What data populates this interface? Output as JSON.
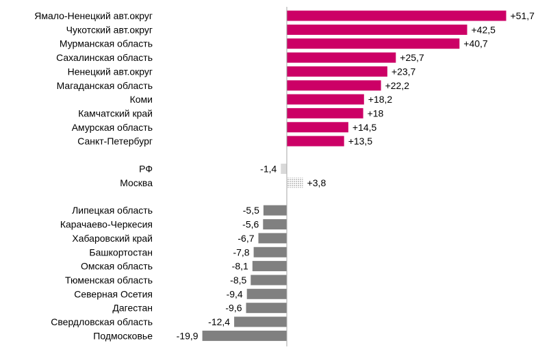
{
  "chart_data": {
    "type": "bar",
    "orientation": "horizontal",
    "colors": {
      "top": "#cc0066",
      "reference": "#d9d9d9",
      "bottom": "#808080",
      "axis": "#a6a6a6"
    },
    "groups": [
      {
        "color_key": "top",
        "items": [
          {
            "label": "Ямало-Ненецкий авт.округ",
            "value": 51.7,
            "value_label": "+51,7"
          },
          {
            "label": "Чукотский авт.округ",
            "value": 42.5,
            "value_label": "+42,5"
          },
          {
            "label": "Мурманская область",
            "value": 40.7,
            "value_label": "+40,7"
          },
          {
            "label": "Сахалинская область",
            "value": 25.7,
            "value_label": "+25,7"
          },
          {
            "label": "Ненецкий авт.округ",
            "value": 23.7,
            "value_label": "+23,7"
          },
          {
            "label": "Магаданская область",
            "value": 22.2,
            "value_label": "+22,2"
          },
          {
            "label": "Коми",
            "value": 18.2,
            "value_label": "+18,2"
          },
          {
            "label": "Камчатский край",
            "value": 18,
            "value_label": "+18"
          },
          {
            "label": "Амурская область",
            "value": 14.5,
            "value_label": "+14,5"
          },
          {
            "label": "Санкт-Петербург",
            "value": 13.5,
            "value_label": "+13,5"
          }
        ]
      },
      {
        "color_key": "reference",
        "items": [
          {
            "label": "РФ",
            "value": -1.4,
            "value_label": "-1,4",
            "pattern": "solid"
          },
          {
            "label": "Москва",
            "value": 3.8,
            "value_label": "+3,8",
            "pattern": "dotted"
          }
        ]
      },
      {
        "color_key": "bottom",
        "items": [
          {
            "label": "Липецкая область",
            "value": -5.5,
            "value_label": "-5,5"
          },
          {
            "label": "Карачаево-Черкесия",
            "value": -5.6,
            "value_label": "-5,6"
          },
          {
            "label": "Хабаровский край",
            "value": -6.7,
            "value_label": "-6,7"
          },
          {
            "label": "Башкортостан",
            "value": -7.8,
            "value_label": "-7,8"
          },
          {
            "label": "Омская область",
            "value": -8.1,
            "value_label": "-8,1"
          },
          {
            "label": "Тюменская область",
            "value": -8.5,
            "value_label": "-8,5"
          },
          {
            "label": "Северная Осетия",
            "value": -9.4,
            "value_label": "-9,4"
          },
          {
            "label": "Дагестан",
            "value": -9.6,
            "value_label": "-9,6"
          },
          {
            "label": "Свердловская область",
            "value": -12.4,
            "value_label": "-12,4"
          },
          {
            "label": "Подмосковье",
            "value": -19.9,
            "value_label": "-19,9"
          }
        ]
      }
    ],
    "xlim": [
      -19.9,
      51.7
    ],
    "grid": false,
    "legend": "none"
  }
}
